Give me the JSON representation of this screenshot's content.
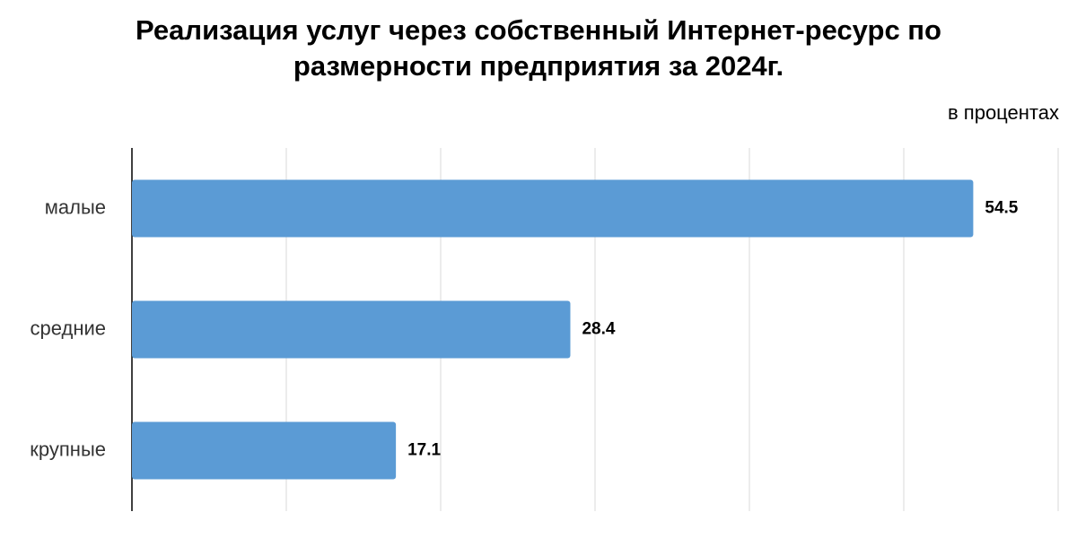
{
  "chart_data": {
    "type": "bar",
    "orientation": "horizontal",
    "title": "Реализация услуг через собственный Интернет-ресурс по размерности предприятия за 2024г.",
    "unit_label": "в процентах",
    "categories": [
      "малые",
      "средние",
      "крупные"
    ],
    "values": [
      54.5,
      28.4,
      17.1
    ],
    "color": "#5b9bd5",
    "xlim": [
      0,
      60
    ],
    "xticks": [
      0,
      10,
      20,
      30,
      40,
      50,
      60
    ],
    "grid": true
  }
}
